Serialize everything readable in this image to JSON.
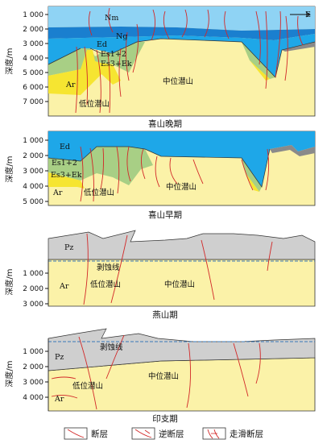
{
  "panels": [
    {
      "caption": "喜山晚期",
      "y_axis_label": "深度/m",
      "ticks": [
        "1 000",
        "2 000",
        "3 000",
        "4 000",
        "5 000",
        "6 000",
        "7 000"
      ],
      "labels": {
        "nm": "Nm",
        "ng": "Ng",
        "ed": "Ed",
        "es12": "Es1+2",
        "es3ek": "Es3+Ek",
        "ar": "Ar",
        "low": "低位潜山",
        "mid": "中位潜山",
        "east": "E"
      }
    },
    {
      "caption": "喜山早期",
      "y_axis_label": "深度/m",
      "ticks": [
        "1 000",
        "2 000",
        "3 000",
        "4 000",
        "5 000"
      ],
      "labels": {
        "ed": "Ed",
        "es12": "Es1+2",
        "es3ek": "Es3+Ek",
        "ar": "Ar",
        "low": "低位潜山",
        "mid": "中位潜山"
      }
    },
    {
      "caption": "燕山期",
      "y_axis_label": "深度/m",
      "ticks": [
        "1 000",
        "2 000",
        "3 000"
      ],
      "labels": {
        "pz": "Pz",
        "erosion": "剥蚀线",
        "ar": "Ar",
        "low": "低位潜山",
        "mid": "中位潜山"
      }
    },
    {
      "caption": "印支期",
      "y_axis_label": "深度/m",
      "ticks": [
        "1 000",
        "2 000",
        "3 000",
        "4 000"
      ],
      "labels": {
        "pz": "Pz",
        "erosion": "剥蚀线",
        "ar": "Ar",
        "low": "低位潜山",
        "mid": "中位潜山"
      }
    }
  ],
  "legend": [
    {
      "label": "断层",
      "icon": "fault-icon"
    },
    {
      "label": "逆断层",
      "icon": "reverse-fault-icon"
    },
    {
      "label": "走滑断层",
      "icon": "strike-slip-fault-icon"
    }
  ],
  "colors": {
    "nm": "#8fd3f4",
    "ng": "#1a7fcf",
    "ed": "#1ea7e8",
    "es12": "#a8cf85",
    "es3ek": "#f6e531",
    "ar": "#fbf2a8",
    "pz": "#cfcfcf",
    "gray": "#8a8a8a",
    "fault": "#d22828"
  }
}
